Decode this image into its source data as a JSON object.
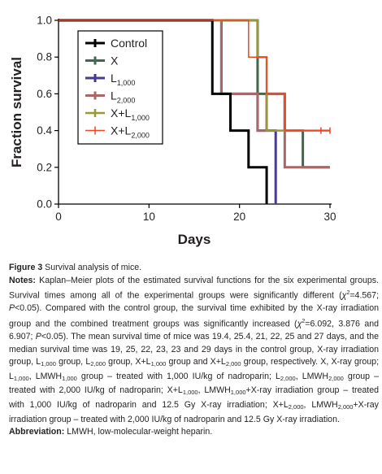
{
  "chart_data": {
    "type": "line",
    "step": true,
    "title": "",
    "xlabel": "Days",
    "ylabel": "Fraction survival",
    "xlim": [
      0,
      30
    ],
    "ylim": [
      0,
      1.0
    ],
    "xticks": [
      0,
      10,
      20,
      30
    ],
    "xtick_labels": [
      "0",
      "10",
      "20",
      "30"
    ],
    "yticks": [
      0,
      0.2,
      0.4,
      0.6,
      0.8,
      1.0
    ],
    "ytick_labels": [
      "0.0",
      "0.2",
      "0.4",
      "0.6",
      "0.8",
      "1.0"
    ],
    "grid": false,
    "legend_position": "top-left",
    "series": [
      {
        "name": "Control",
        "color": "#000000",
        "width": 3,
        "x": [
          0,
          17,
          17,
          19,
          19,
          21,
          21,
          23,
          23
        ],
        "y": [
          1.0,
          1.0,
          0.6,
          0.6,
          0.4,
          0.4,
          0.2,
          0.2,
          0.0
        ]
      },
      {
        "name": "X",
        "color": "#41684d",
        "width": 3,
        "x": [
          0,
          22,
          22,
          25,
          25,
          27,
          27,
          30
        ],
        "y": [
          1.0,
          1.0,
          0.6,
          0.6,
          0.4,
          0.4,
          0.2,
          0.2
        ]
      },
      {
        "name": "L1,000",
        "color": "#483a8f",
        "width": 3,
        "x": [
          0,
          18,
          18,
          22,
          22,
          24,
          24
        ],
        "y": [
          1.0,
          1.0,
          0.6,
          0.6,
          0.4,
          0.4,
          0.0
        ]
      },
      {
        "name": "L2,000",
        "color": "#a96767",
        "width": 3,
        "x": [
          0,
          18,
          18,
          22,
          22,
          23,
          23,
          25,
          25,
          30
        ],
        "y": [
          1.0,
          1.0,
          0.6,
          0.6,
          0.4,
          0.4,
          0.6,
          0.6,
          0.2,
          0.2
        ]
      },
      {
        "name": "X+L1,000",
        "color": "#999933",
        "width": 2.5,
        "x": [
          0,
          22,
          22,
          23,
          23,
          30
        ],
        "y": [
          1.0,
          1.0,
          0.8,
          0.8,
          0.4,
          0.4
        ]
      },
      {
        "name": "X+L2,000",
        "color": "#ef4523",
        "width": 1.5,
        "x": [
          0,
          21,
          21,
          23,
          23,
          25,
          25,
          29,
          29,
          30
        ],
        "y": [
          1.0,
          1.0,
          0.8,
          0.8,
          0.6,
          0.6,
          0.4,
          0.4,
          0.4,
          0.4
        ],
        "censor_x": [
          29,
          30
        ],
        "censor_y": [
          0.4,
          0.4
        ]
      }
    ],
    "legend": [
      {
        "main": "Control",
        "sub": ""
      },
      {
        "main": "X",
        "sub": ""
      },
      {
        "main": "L",
        "sub": "1,000"
      },
      {
        "main": "L",
        "sub": "2,000"
      },
      {
        "main": "X+L",
        "sub": "1,000"
      },
      {
        "main": "X+L",
        "sub": "2,000"
      }
    ]
  },
  "caption": {
    "label": "Figure 3",
    "title": "Survival analysis of mice.",
    "notes_label": "Notes:",
    "abbrev_label": "Abbreviation:",
    "abbrev_text": "LMWH, low-molecular-weight heparin."
  }
}
